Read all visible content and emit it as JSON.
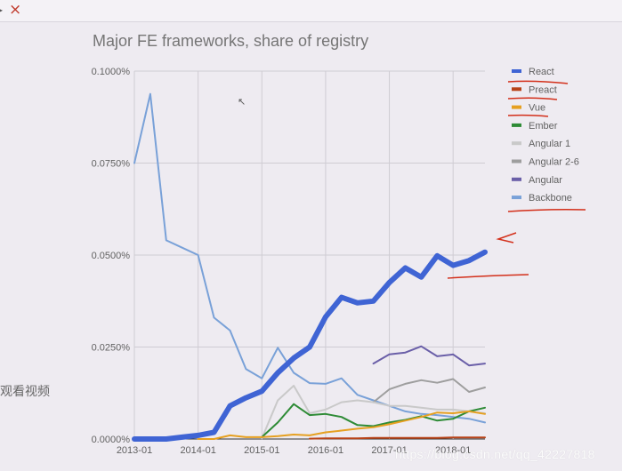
{
  "window": {
    "close_icon": "×"
  },
  "side_text": "观看视频",
  "watermark": "https://blog.csdn.net/qq_42227818",
  "chart_data": {
    "type": "line",
    "title": "Major FE frameworks, share of registry",
    "xlabel": "",
    "ylabel": "",
    "x": [
      "2013-01",
      "2013-04",
      "2013-07",
      "2013-10",
      "2014-01",
      "2014-04",
      "2014-07",
      "2014-10",
      "2015-01",
      "2015-04",
      "2015-07",
      "2015-10",
      "2016-01",
      "2016-04",
      "2016-07",
      "2016-10",
      "2017-01",
      "2017-04",
      "2017-07",
      "2017-10",
      "2018-01",
      "2018-04",
      "2018-07"
    ],
    "x_ticks": [
      "2013-01",
      "2014-01",
      "2015-01",
      "2016-01",
      "2017-01",
      "2018-01"
    ],
    "y_ticks": [
      "0.0000%",
      "0.0250%",
      "0.0500%",
      "0.0750%",
      "0.1000%"
    ],
    "ylim": [
      0,
      0.1
    ],
    "grid": true,
    "legend_position": "right",
    "series": [
      {
        "name": "React",
        "color": "#3f64d4",
        "width": 6,
        "values": [
          0.0,
          0.0,
          0.0,
          0.0005,
          0.001,
          0.0018,
          0.009,
          0.0112,
          0.013,
          0.018,
          0.022,
          0.025,
          0.0332,
          0.0385,
          0.037,
          0.0375,
          0.0425,
          0.0465,
          0.044,
          0.0498,
          0.0472,
          0.0485,
          0.0508
        ]
      },
      {
        "name": "Preact",
        "color": "#b84318",
        "width": 2,
        "values": [
          null,
          null,
          null,
          null,
          null,
          null,
          null,
          null,
          null,
          null,
          null,
          0.0001,
          0.0002,
          0.0002,
          0.0002,
          0.0003,
          0.0003,
          0.0003,
          0.0003,
          0.0003,
          0.0004,
          0.0004,
          0.0004
        ]
      },
      {
        "name": "Vue",
        "color": "#e6a020",
        "width": 2,
        "values": [
          null,
          null,
          null,
          null,
          0.0,
          0.0,
          0.001,
          0.0005,
          0.0005,
          0.0008,
          0.0012,
          0.001,
          0.0018,
          0.0023,
          0.0028,
          0.0032,
          0.004,
          0.005,
          0.006,
          0.0072,
          0.007,
          0.0075,
          0.0068
        ]
      },
      {
        "name": "Ember",
        "color": "#2e8b36",
        "width": 2,
        "values": [
          null,
          null,
          null,
          null,
          null,
          null,
          null,
          null,
          0.0005,
          0.0045,
          0.0095,
          0.0065,
          0.0068,
          0.006,
          0.0038,
          0.0035,
          0.0045,
          0.0052,
          0.0062,
          0.005,
          0.0055,
          0.0075,
          0.0085
        ]
      },
      {
        "name": "Angular 1",
        "color": "#c9c9c9",
        "width": 2,
        "values": [
          null,
          null,
          null,
          null,
          null,
          null,
          null,
          null,
          0.0002,
          0.0105,
          0.0145,
          0.007,
          0.008,
          0.01,
          0.0105,
          0.01,
          0.009,
          0.009,
          0.0085,
          0.008,
          0.008,
          0.0075,
          0.007
        ]
      },
      {
        "name": "Angular 2-6",
        "color": "#9e9e9e",
        "width": 2,
        "values": [
          null,
          null,
          null,
          null,
          null,
          null,
          null,
          null,
          null,
          null,
          null,
          null,
          null,
          null,
          null,
          0.01,
          0.0135,
          0.015,
          0.016,
          0.0153,
          0.0163,
          0.0128,
          0.014
        ]
      },
      {
        "name": "Angular",
        "color": "#6a5fa8",
        "width": 2,
        "values": [
          null,
          null,
          null,
          null,
          null,
          null,
          null,
          null,
          null,
          null,
          null,
          null,
          null,
          null,
          null,
          0.0205,
          0.023,
          0.0235,
          0.0252,
          0.0225,
          0.023,
          0.02,
          0.0205
        ]
      },
      {
        "name": "Backbone",
        "color": "#79a1d8",
        "width": 2,
        "values": [
          0.075,
          0.0938,
          0.054,
          0.052,
          0.05,
          0.033,
          0.0295,
          0.019,
          0.0165,
          0.0248,
          0.018,
          0.0152,
          0.015,
          0.0165,
          0.012,
          0.0105,
          0.009,
          0.0075,
          0.0068,
          0.0065,
          0.006,
          0.0055,
          0.0045
        ]
      }
    ]
  }
}
